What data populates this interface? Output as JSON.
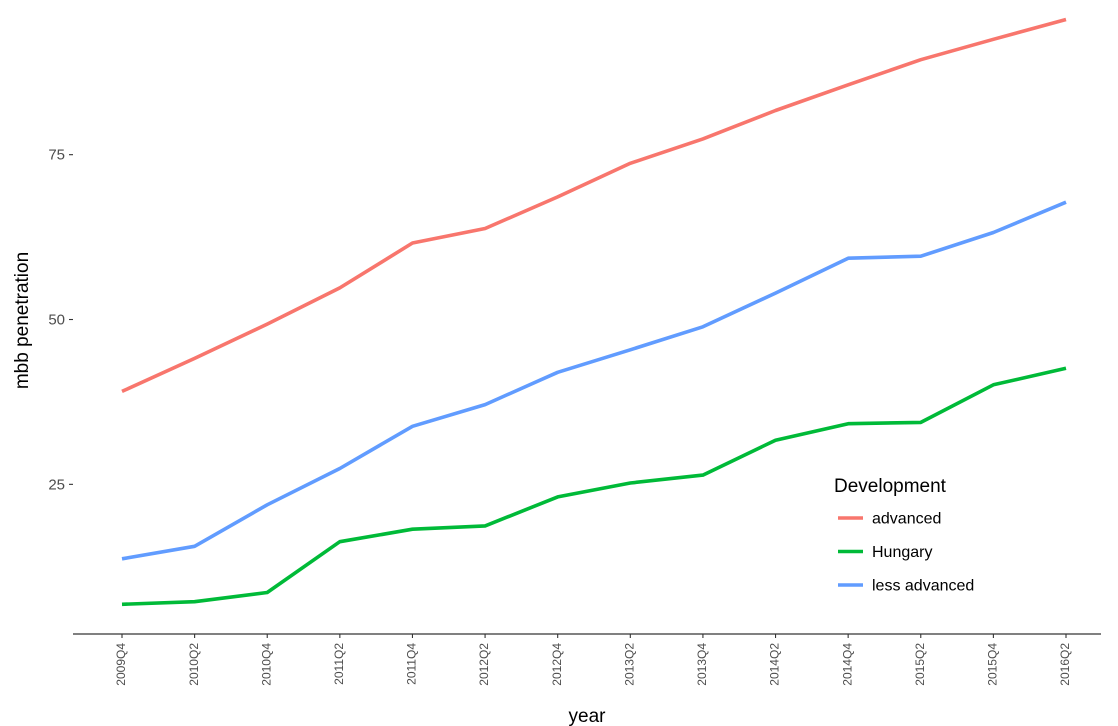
{
  "chart_data": {
    "type": "line",
    "title": "",
    "xlabel": "year",
    "ylabel": "mbb penetration",
    "x": [
      "2009Q4",
      "2010Q2",
      "2010Q4",
      "2011Q2",
      "2011Q4",
      "2012Q2",
      "2012Q4",
      "2013Q2",
      "2013Q4",
      "2014Q2",
      "2014Q4",
      "2015Q2",
      "2015Q4",
      "2016Q2"
    ],
    "yticks": [
      25,
      50,
      75
    ],
    "ylim": [
      2.3,
      97.4
    ],
    "grid": false,
    "legend": {
      "title": "Development",
      "placement": "bottom-right"
    },
    "series": [
      {
        "name": "advanced",
        "color": "#F8766D",
        "values": [
          39.1,
          44.1,
          49.3,
          54.8,
          61.6,
          63.8,
          68.6,
          73.7,
          77.4,
          81.7,
          85.6,
          89.4,
          92.5,
          95.5
        ]
      },
      {
        "name": "Hungary",
        "color": "#00BA38",
        "values": [
          6.8,
          7.2,
          8.6,
          16.3,
          18.2,
          18.7,
          23.1,
          25.2,
          26.4,
          31.7,
          34.2,
          34.4,
          40.1,
          42.6
        ]
      },
      {
        "name": "less advanced",
        "color": "#619CFF",
        "values": [
          13.7,
          15.6,
          21.9,
          27.4,
          33.8,
          37.1,
          42.0,
          45.4,
          48.9,
          54.0,
          59.3,
          59.6,
          63.2,
          67.8
        ]
      }
    ]
  }
}
